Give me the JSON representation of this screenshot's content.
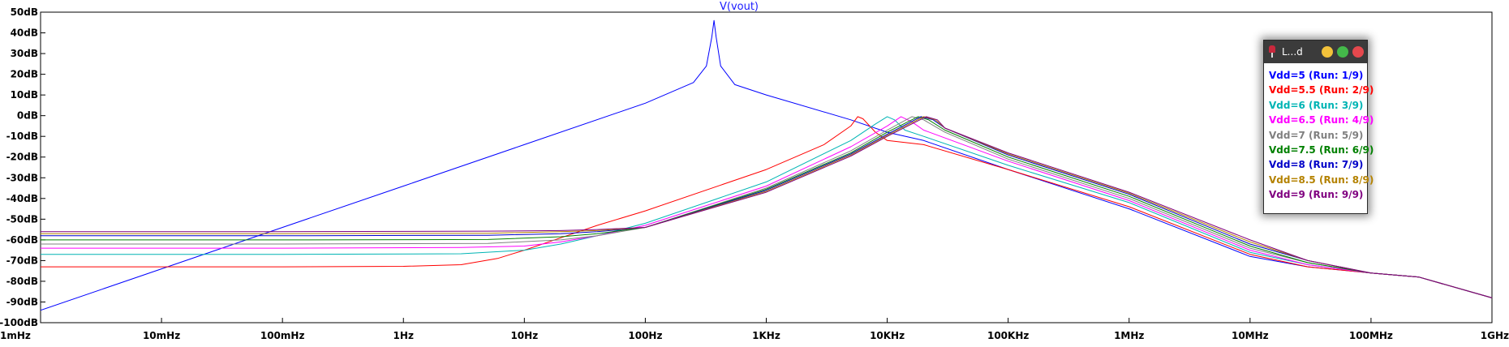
{
  "chart_data": {
    "type": "line",
    "title": "V(vout)",
    "x_scale": "log",
    "xlim_hz": [
      0.001,
      1000000000
    ],
    "ylim_db": [
      -100,
      50
    ],
    "x_ticks": [
      {
        "value": 0.001,
        "label": "1mHz"
      },
      {
        "value": 0.01,
        "label": "10mHz"
      },
      {
        "value": 0.1,
        "label": "100mHz"
      },
      {
        "value": 1,
        "label": "1Hz"
      },
      {
        "value": 10,
        "label": "10Hz"
      },
      {
        "value": 100,
        "label": "100Hz"
      },
      {
        "value": 1000,
        "label": "1KHz"
      },
      {
        "value": 10000,
        "label": "10KHz"
      },
      {
        "value": 100000,
        "label": "100KHz"
      },
      {
        "value": 1000000,
        "label": "1MHz"
      },
      {
        "value": 10000000,
        "label": "10MHz"
      },
      {
        "value": 100000000,
        "label": "100MHz"
      },
      {
        "value": 1000000000,
        "label": "1GHz"
      }
    ],
    "y_ticks": [
      {
        "value": 50,
        "label": "50dB"
      },
      {
        "value": 40,
        "label": "40dB"
      },
      {
        "value": 30,
        "label": "30dB"
      },
      {
        "value": 20,
        "label": "20dB"
      },
      {
        "value": 10,
        "label": "10dB"
      },
      {
        "value": 0,
        "label": "0dB"
      },
      {
        "value": -10,
        "label": "-10dB"
      },
      {
        "value": -20,
        "label": "-20dB"
      },
      {
        "value": -30,
        "label": "-30dB"
      },
      {
        "value": -40,
        "label": "-40dB"
      },
      {
        "value": -50,
        "label": "-50dB"
      },
      {
        "value": -60,
        "label": "-60dB"
      },
      {
        "value": -70,
        "label": "-70dB"
      },
      {
        "value": -80,
        "label": "-80dB"
      },
      {
        "value": -90,
        "label": "-90dB"
      },
      {
        "value": -100,
        "label": "-100dB"
      }
    ],
    "grid": false,
    "legend_placement": "top-right (floating window)",
    "series": [
      {
        "name": "Vdd=5 (Run: 1/9)",
        "color": "#0000ff",
        "points": [
          [
            0.001,
            -94
          ],
          [
            0.01,
            -74
          ],
          [
            0.1,
            -54
          ],
          [
            1,
            -34
          ],
          [
            10,
            -14
          ],
          [
            100,
            6
          ],
          [
            250,
            16
          ],
          [
            320,
            24
          ],
          [
            355,
            38
          ],
          [
            370,
            46
          ],
          [
            385,
            38
          ],
          [
            420,
            24
          ],
          [
            550,
            15
          ],
          [
            1000,
            10
          ],
          [
            5000,
            -2
          ],
          [
            10000,
            -8
          ],
          [
            20000,
            -12
          ],
          [
            100000,
            -26
          ],
          [
            1000000,
            -45
          ],
          [
            10000000,
            -68
          ],
          [
            30000000,
            -73
          ],
          [
            100000000,
            -76
          ],
          [
            250000000,
            -78
          ],
          [
            1000000000,
            -88
          ]
        ]
      },
      {
        "name": "Vdd=5.5 (Run: 2/9)",
        "color": "#ff0000",
        "points": [
          [
            0.001,
            -73
          ],
          [
            0.1,
            -73
          ],
          [
            1,
            -72.8
          ],
          [
            3,
            -72
          ],
          [
            6,
            -69
          ],
          [
            10,
            -65
          ],
          [
            20,
            -59
          ],
          [
            40,
            -53
          ],
          [
            100,
            -46
          ],
          [
            1000,
            -26
          ],
          [
            3000,
            -14
          ],
          [
            5000,
            -5
          ],
          [
            5700,
            -0.5
          ],
          [
            6300,
            -1.5
          ],
          [
            8000,
            -8
          ],
          [
            10000,
            -12
          ],
          [
            20000,
            -14
          ],
          [
            100000,
            -26
          ],
          [
            1000000,
            -44
          ],
          [
            10000000,
            -67
          ],
          [
            30000000,
            -73
          ],
          [
            100000000,
            -76
          ],
          [
            250000000,
            -78
          ],
          [
            1000000000,
            -88
          ]
        ]
      },
      {
        "name": "Vdd=6 (Run: 3/9)",
        "color": "#00b4b4",
        "points": [
          [
            0.001,
            -67
          ],
          [
            0.1,
            -67
          ],
          [
            3,
            -66.7
          ],
          [
            10,
            -65
          ],
          [
            20,
            -62
          ],
          [
            40,
            -58
          ],
          [
            100,
            -52
          ],
          [
            1000,
            -32
          ],
          [
            5000,
            -12
          ],
          [
            8000,
            -4
          ],
          [
            10000,
            -0.5
          ],
          [
            11500,
            -2
          ],
          [
            14000,
            -7
          ],
          [
            20000,
            -10
          ],
          [
            100000,
            -24
          ],
          [
            1000000,
            -42
          ],
          [
            10000000,
            -66
          ],
          [
            30000000,
            -72
          ],
          [
            100000000,
            -76
          ],
          [
            250000000,
            -78
          ],
          [
            1000000000,
            -88
          ]
        ]
      },
      {
        "name": "Vdd=6.5 (Run: 4/9)",
        "color": "#ff00ff",
        "points": [
          [
            0.001,
            -64
          ],
          [
            0.1,
            -64
          ],
          [
            3,
            -63.7
          ],
          [
            10,
            -63
          ],
          [
            20,
            -61
          ],
          [
            40,
            -58
          ],
          [
            100,
            -53
          ],
          [
            1000,
            -34
          ],
          [
            5000,
            -15
          ],
          [
            10000,
            -5
          ],
          [
            13000,
            -0.5
          ],
          [
            16000,
            -3
          ],
          [
            20000,
            -7
          ],
          [
            100000,
            -22
          ],
          [
            1000000,
            -41
          ],
          [
            10000000,
            -65
          ],
          [
            30000000,
            -72
          ],
          [
            100000000,
            -76
          ],
          [
            250000000,
            -78
          ],
          [
            1000000000,
            -88
          ]
        ]
      },
      {
        "name": "Vdd=7 (Run: 5/9)",
        "color": "#808080",
        "points": [
          [
            0.001,
            -62
          ],
          [
            0.1,
            -62
          ],
          [
            5,
            -61.7
          ],
          [
            20,
            -60
          ],
          [
            40,
            -58
          ],
          [
            100,
            -54
          ],
          [
            1000,
            -35
          ],
          [
            5000,
            -17
          ],
          [
            10000,
            -7
          ],
          [
            16000,
            -0.5
          ],
          [
            20000,
            -2
          ],
          [
            30000,
            -8
          ],
          [
            100000,
            -21
          ],
          [
            1000000,
            -40
          ],
          [
            10000000,
            -64
          ],
          [
            30000000,
            -71
          ],
          [
            100000000,
            -76
          ],
          [
            250000000,
            -78
          ],
          [
            1000000000,
            -88
          ]
        ]
      },
      {
        "name": "Vdd=7.5 (Run: 6/9)",
        "color": "#008000",
        "points": [
          [
            0.001,
            -60
          ],
          [
            0.1,
            -60
          ],
          [
            5,
            -59.8
          ],
          [
            20,
            -58.5
          ],
          [
            40,
            -57
          ],
          [
            100,
            -54
          ],
          [
            1000,
            -35.5
          ],
          [
            5000,
            -18
          ],
          [
            10000,
            -8
          ],
          [
            18000,
            -0.5
          ],
          [
            22000,
            -2
          ],
          [
            30000,
            -7
          ],
          [
            100000,
            -20
          ],
          [
            1000000,
            -39
          ],
          [
            10000000,
            -63
          ],
          [
            30000000,
            -71
          ],
          [
            100000000,
            -76
          ],
          [
            250000000,
            -78
          ],
          [
            1000000000,
            -88
          ]
        ]
      },
      {
        "name": "Vdd=8 (Run: 7/9)",
        "color": "#0000c8",
        "points": [
          [
            0.001,
            -58
          ],
          [
            0.1,
            -58
          ],
          [
            5,
            -57.8
          ],
          [
            20,
            -57
          ],
          [
            40,
            -56
          ],
          [
            100,
            -54
          ],
          [
            1000,
            -36
          ],
          [
            5000,
            -18.5
          ],
          [
            10000,
            -9
          ],
          [
            19000,
            -0.5
          ],
          [
            24000,
            -2
          ],
          [
            30000,
            -6
          ],
          [
            100000,
            -19
          ],
          [
            1000000,
            -38
          ],
          [
            10000000,
            -62
          ],
          [
            30000000,
            -70
          ],
          [
            100000000,
            -76
          ],
          [
            250000000,
            -78
          ],
          [
            1000000000,
            -88
          ]
        ]
      },
      {
        "name": "Vdd=8.5 (Run: 8/9)",
        "color": "#b48200",
        "points": [
          [
            0.001,
            -57
          ],
          [
            0.1,
            -57
          ],
          [
            5,
            -56.8
          ],
          [
            20,
            -56
          ],
          [
            40,
            -55.5
          ],
          [
            100,
            -54
          ],
          [
            1000,
            -36.5
          ],
          [
            5000,
            -19
          ],
          [
            10000,
            -9.5
          ],
          [
            20000,
            -0.5
          ],
          [
            25000,
            -2
          ],
          [
            30000,
            -6
          ],
          [
            100000,
            -18.5
          ],
          [
            1000000,
            -37.5
          ],
          [
            10000000,
            -61
          ],
          [
            30000000,
            -70
          ],
          [
            100000000,
            -76
          ],
          [
            250000000,
            -78
          ],
          [
            1000000000,
            -88
          ]
        ]
      },
      {
        "name": "Vdd=9 (Run: 9/9)",
        "color": "#800080",
        "points": [
          [
            0.001,
            -56
          ],
          [
            0.1,
            -56
          ],
          [
            5,
            -55.8
          ],
          [
            20,
            -55.5
          ],
          [
            40,
            -55
          ],
          [
            100,
            -54
          ],
          [
            1000,
            -37
          ],
          [
            5000,
            -19.5
          ],
          [
            10000,
            -10
          ],
          [
            21000,
            -0.5
          ],
          [
            26000,
            -2
          ],
          [
            30000,
            -6
          ],
          [
            100000,
            -18
          ],
          [
            1000000,
            -37
          ],
          [
            10000000,
            -60
          ],
          [
            30000000,
            -70
          ],
          [
            100000000,
            -76
          ],
          [
            250000000,
            -78
          ],
          [
            1000000000,
            -88
          ]
        ]
      }
    ]
  },
  "legend": {
    "title": "L...d"
  }
}
